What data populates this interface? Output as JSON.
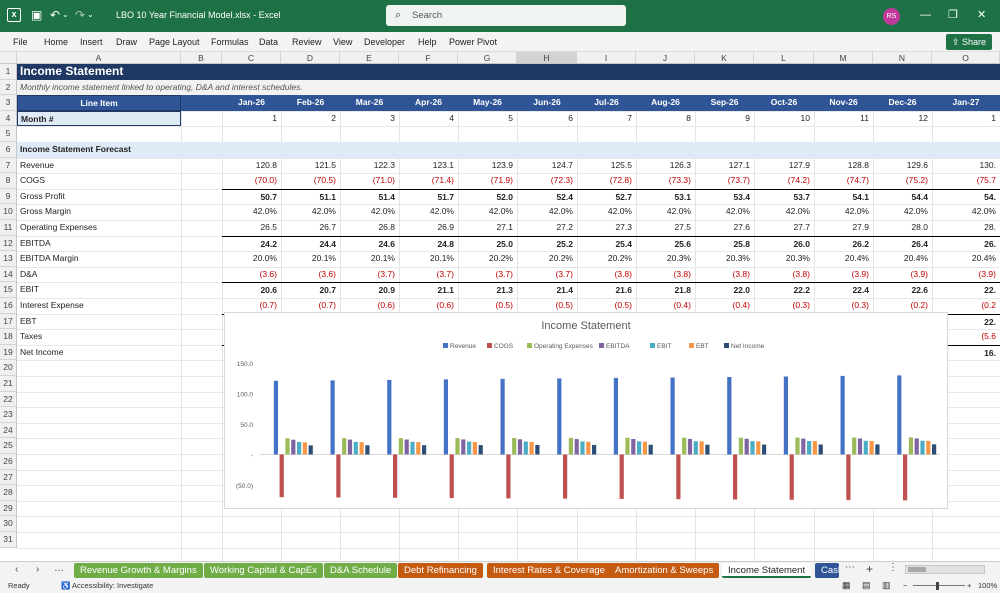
{
  "window": {
    "title": "LBO 10 Year Financial Model.xlsx  -  Excel",
    "search_placeholder": "Search",
    "user_initials": "RS"
  },
  "ribbon": {
    "tabs": [
      "File",
      "Home",
      "Insert",
      "Draw",
      "Page Layout",
      "Formulas",
      "Data",
      "Review",
      "View",
      "Developer",
      "Help",
      "Power Pivot"
    ],
    "share_label": "Share"
  },
  "columns": [
    "A",
    "B",
    "C",
    "D",
    "E",
    "F",
    "G",
    "H",
    "I",
    "J",
    "K",
    "L",
    "M",
    "N",
    "O"
  ],
  "selected_column": "H",
  "rows": [
    "1",
    "2",
    "3",
    "4",
    "5",
    "6",
    "7",
    "8",
    "9",
    "10",
    "11",
    "12",
    "13",
    "14",
    "15",
    "16",
    "17",
    "18",
    "19",
    "20",
    "21",
    "22",
    "23",
    "24",
    "25",
    "26",
    "27",
    "28",
    "29",
    "30",
    "31"
  ],
  "sheet": {
    "title": "Income Statement",
    "subtitle": "Monthly income statement linked to operating, D&A and interest schedules.",
    "line_item_header": "Line Item",
    "month_label": "Month #",
    "section_label": "Income Statement Forecast",
    "months": [
      "Jan-26",
      "Feb-26",
      "Mar-26",
      "Apr-26",
      "May-26",
      "Jun-26",
      "Jul-26",
      "Aug-26",
      "Sep-26",
      "Oct-26",
      "Nov-26",
      "Dec-26",
      "Jan-27"
    ],
    "month_numbers": [
      "1",
      "2",
      "3",
      "4",
      "5",
      "6",
      "7",
      "8",
      "9",
      "10",
      "11",
      "12",
      "1"
    ],
    "lines": [
      {
        "label": "Revenue",
        "bold": false,
        "values": [
          "120.8",
          "121.5",
          "122.3",
          "123.1",
          "123.9",
          "124.7",
          "125.5",
          "126.3",
          "127.1",
          "127.9",
          "128.8",
          "129.6",
          "130."
        ]
      },
      {
        "label": "COGS",
        "bold": false,
        "values": [
          "(70.0)",
          "(70.5)",
          "(71.0)",
          "(71.4)",
          "(71.9)",
          "(72.3)",
          "(72.8)",
          "(73.3)",
          "(73.7)",
          "(74.2)",
          "(74.7)",
          "(75.2)",
          "(75.7"
        ]
      },
      {
        "label": "Gross Profit",
        "bold": true,
        "values": [
          "50.7",
          "51.1",
          "51.4",
          "51.7",
          "52.0",
          "52.4",
          "52.7",
          "53.1",
          "53.4",
          "53.7",
          "54.1",
          "54.4",
          "54."
        ]
      },
      {
        "label": "Gross Margin",
        "bold": false,
        "values": [
          "42.0%",
          "42.0%",
          "42.0%",
          "42.0%",
          "42.0%",
          "42.0%",
          "42.0%",
          "42.0%",
          "42.0%",
          "42.0%",
          "42.0%",
          "42.0%",
          "42.0%"
        ]
      },
      {
        "label": "Operating Expenses",
        "bold": false,
        "values": [
          "26.5",
          "26.7",
          "26.8",
          "26.9",
          "27.1",
          "27.2",
          "27.3",
          "27.5",
          "27.6",
          "27.7",
          "27.9",
          "28.0",
          "28."
        ]
      },
      {
        "label": "EBITDA",
        "bold": true,
        "values": [
          "24.2",
          "24.4",
          "24.6",
          "24.8",
          "25.0",
          "25.2",
          "25.4",
          "25.6",
          "25.8",
          "26.0",
          "26.2",
          "26.4",
          "26."
        ]
      },
      {
        "label": "EBITDA Margin",
        "bold": false,
        "values": [
          "20.0%",
          "20.1%",
          "20.1%",
          "20.1%",
          "20.2%",
          "20.2%",
          "20.2%",
          "20.3%",
          "20.3%",
          "20.3%",
          "20.4%",
          "20.4%",
          "20.4%"
        ]
      },
      {
        "label": "D&A",
        "bold": false,
        "values": [
          "(3.6)",
          "(3.6)",
          "(3.7)",
          "(3.7)",
          "(3.7)",
          "(3.7)",
          "(3.8)",
          "(3.8)",
          "(3.8)",
          "(3.8)",
          "(3.9)",
          "(3.9)",
          "(3.9)"
        ]
      },
      {
        "label": "EBIT",
        "bold": true,
        "values": [
          "20.6",
          "20.7",
          "20.9",
          "21.1",
          "21.3",
          "21.4",
          "21.6",
          "21.8",
          "22.0",
          "22.2",
          "22.4",
          "22.6",
          "22."
        ]
      },
      {
        "label": "Interest Expense",
        "bold": false,
        "values": [
          "(0.7)",
          "(0.7)",
          "(0.6)",
          "(0.6)",
          "(0.5)",
          "(0.5)",
          "(0.5)",
          "(0.4)",
          "(0.4)",
          "(0.3)",
          "(0.3)",
          "(0.2)",
          "(0.2"
        ]
      },
      {
        "label": "EBT",
        "bold": true,
        "values": [
          "19.9",
          "20.1",
          "20.3",
          "20.5",
          "20.7",
          "20.9",
          "21.2",
          "21.4",
          "21.6",
          "21.9",
          "22.1",
          "22.3",
          "22."
        ]
      },
      {
        "label": "Taxes",
        "bold": false,
        "values": [
          "(5.0)",
          "(5.0)",
          "(5.1)",
          "(5.1)",
          "(5.2)",
          "(5.2)",
          "(5.3)",
          "(5.3)",
          "(5.4)",
          "(5.5)",
          "(5.5)",
          "(5.6)",
          "(5.6"
        ]
      },
      {
        "label": "Net Income",
        "bold": true,
        "values": [
          "14.9",
          "15.1",
          "15.2",
          "15.4",
          "15.5",
          "15.7",
          "15.9",
          "16.0",
          "16.2",
          "16.4",
          "16.6",
          "16.8",
          "16."
        ]
      }
    ]
  },
  "chart_data": {
    "type": "bar",
    "title": "Income Statement",
    "legend_position": "top",
    "ylim": [
      -60,
      160
    ],
    "y_ticks": [
      "150.0",
      "100.0",
      "50.0",
      "-",
      "(50.0)"
    ],
    "y_tick_values": [
      150,
      100,
      50,
      0,
      -50
    ],
    "categories": [
      "Jan-26",
      "Feb-26",
      "Mar-26",
      "Apr-26",
      "May-26",
      "Jun-26",
      "Jul-26",
      "Aug-26",
      "Sep-26",
      "Oct-26",
      "Nov-26",
      "Dec-26"
    ],
    "series": [
      {
        "name": "Revenue",
        "color": "#4472c4",
        "values": [
          120.8,
          121.5,
          122.3,
          123.1,
          123.9,
          124.7,
          125.5,
          126.3,
          127.1,
          127.9,
          128.8,
          129.6
        ]
      },
      {
        "name": "COGS",
        "color": "#c0504d",
        "values": [
          -70.0,
          -70.5,
          -71.0,
          -71.4,
          -71.9,
          -72.3,
          -72.8,
          -73.3,
          -73.7,
          -74.2,
          -74.7,
          -75.2
        ]
      },
      {
        "name": "Operating Expenses",
        "color": "#9bbb59",
        "values": [
          26.5,
          26.7,
          26.8,
          26.9,
          27.1,
          27.2,
          27.3,
          27.5,
          27.6,
          27.7,
          27.9,
          28.0
        ]
      },
      {
        "name": "EBITDA",
        "color": "#8064a2",
        "values": [
          24.2,
          24.4,
          24.6,
          24.8,
          25.0,
          25.2,
          25.4,
          25.6,
          25.8,
          26.0,
          26.2,
          26.4
        ]
      },
      {
        "name": "EBIT",
        "color": "#4bacc6",
        "values": [
          20.6,
          20.7,
          20.9,
          21.1,
          21.3,
          21.4,
          21.6,
          21.8,
          22.0,
          22.2,
          22.4,
          22.6
        ]
      },
      {
        "name": "EBT",
        "color": "#f79646",
        "values": [
          19.9,
          20.1,
          20.3,
          20.5,
          20.7,
          20.9,
          21.2,
          21.4,
          21.6,
          21.9,
          22.1,
          22.3
        ]
      },
      {
        "name": "Net Income",
        "color": "#2c4d75",
        "values": [
          14.9,
          15.1,
          15.2,
          15.4,
          15.5,
          15.7,
          15.9,
          16.0,
          16.2,
          16.4,
          16.6,
          16.8
        ]
      }
    ]
  },
  "sheet_tabs": [
    {
      "label": "Revenue Growth & Margins",
      "color": "#70ad47",
      "active": false
    },
    {
      "label": "Working Capital & CapEx",
      "color": "#70ad47",
      "active": false
    },
    {
      "label": "D&A Schedule",
      "color": "#70ad47",
      "active": false
    },
    {
      "label": "Debt Refinancing",
      "color": "#c55a11",
      "active": false
    },
    {
      "label": "Interest Rates & Coverage",
      "color": "#c55a11",
      "active": false
    },
    {
      "label": "Amortization & Sweeps",
      "color": "#c55a11",
      "active": false
    },
    {
      "label": "Income Statement",
      "color": "#ffffff",
      "active": true
    },
    {
      "label": "Cash",
      "color": "#2f5597",
      "active": false
    }
  ],
  "status": {
    "ready": "Ready",
    "accessibility": "Accessibility: Investigate",
    "zoom": "100%"
  },
  "colors": {
    "excel_green": "#1e7145",
    "header_navy": "#1f3864",
    "header_blue": "#2f5597",
    "light_blue": "#deebf7"
  }
}
